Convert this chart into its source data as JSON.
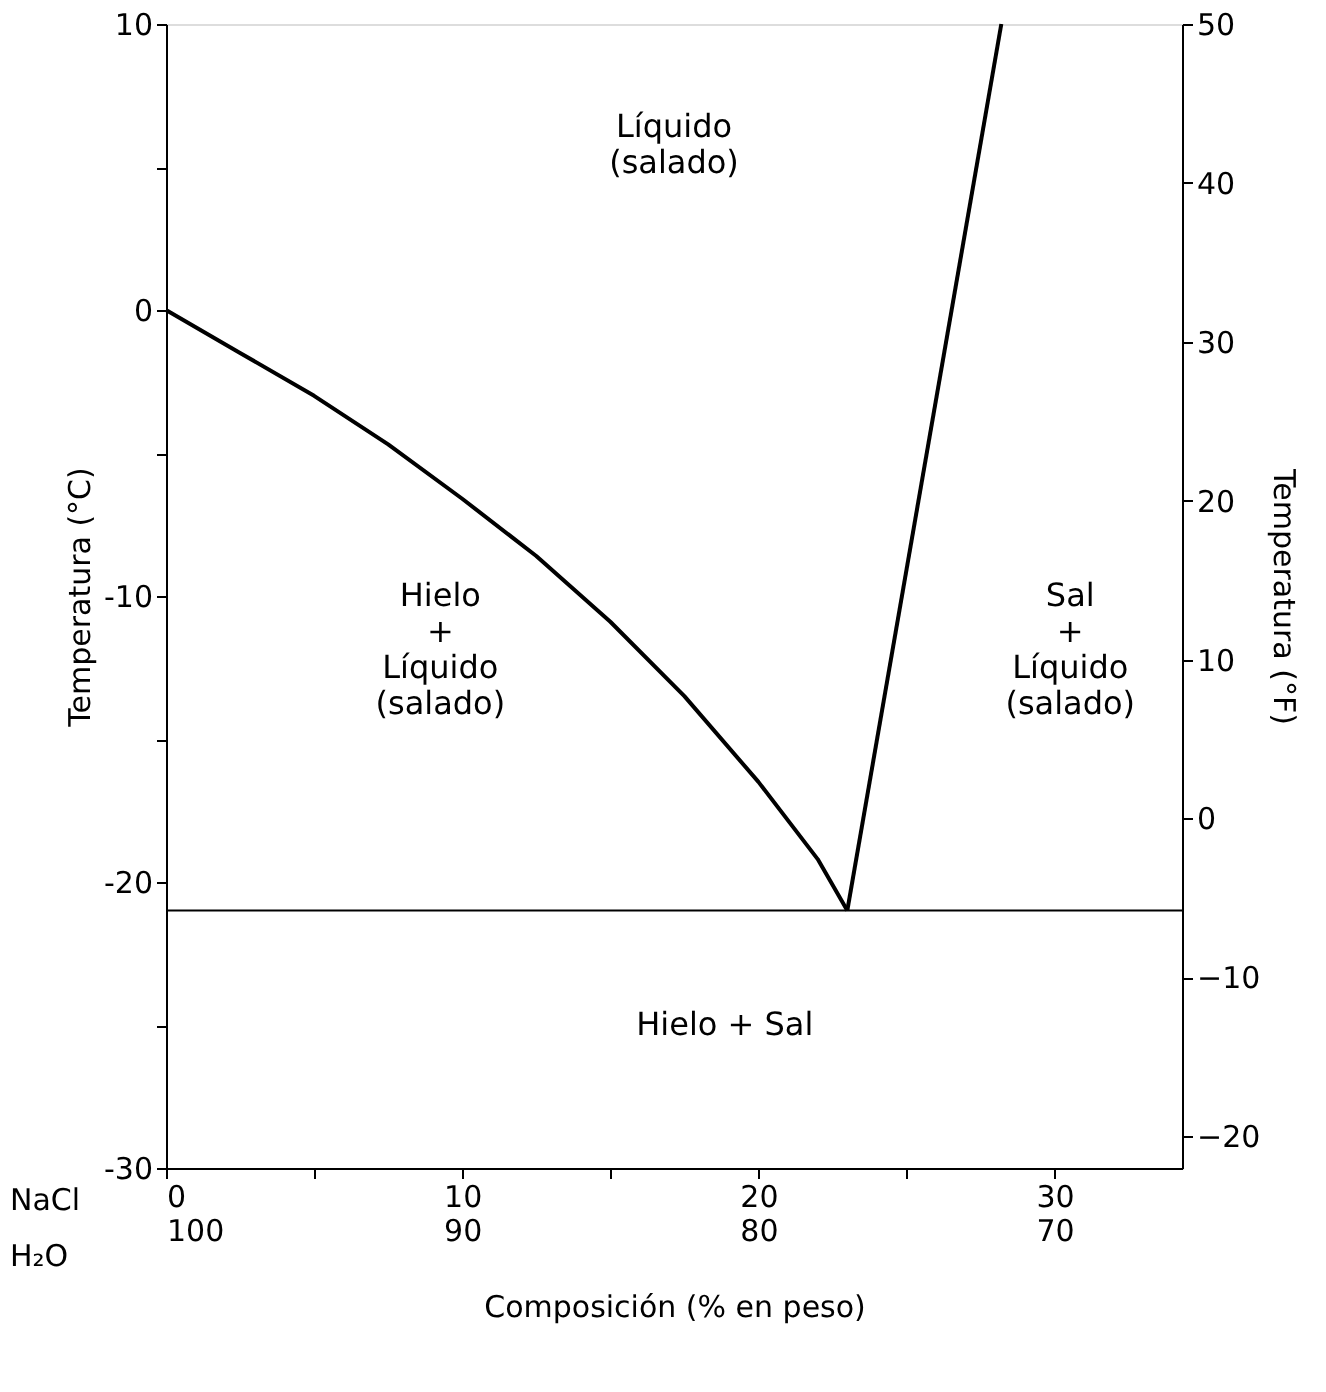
{
  "chart_data": {
    "type": "line",
    "xlabel": "Composición (% en peso)",
    "ylabel": "Temperatura (°C)",
    "y2label": "Temperatura (°F)",
    "xlim": [
      0,
      34.3
    ],
    "xticks": [
      0,
      {
        "value": 5,
        "label": null
      },
      10,
      {
        "value": 15,
        "label": null
      },
      20,
      {
        "value": 25,
        "label": null
      },
      30
    ],
    "x2lim": [
      100,
      65.7
    ],
    "x2ticks": [
      100,
      90,
      80,
      70
    ],
    "ylim": [
      -30,
      10
    ],
    "yticks": [
      -30,
      {
        "value": -25,
        "label": null
      },
      -20,
      {
        "value": -15,
        "label": null
      },
      -10,
      {
        "value": -5,
        "label": null
      },
      0,
      {
        "value": 5,
        "label": null
      },
      10
    ],
    "y2lim": [
      -22,
      50
    ],
    "y2ticks": [
      -20,
      -10,
      0,
      10,
      20,
      30,
      40,
      50
    ],
    "series": [
      {
        "color": "#000000",
        "x": [
          0,
          2.5,
          5,
          7.5,
          10,
          12.5,
          15,
          17.5,
          20,
          22,
          23
        ],
        "values": [
          0,
          -1.5,
          -3,
          -4.7,
          -6.6,
          -8.6,
          -10.9,
          -13.5,
          -16.5,
          -19.2,
          -21
        ]
      },
      {
        "color": "#000000",
        "x": [
          23,
          28.2
        ],
        "values": [
          -21,
          10
        ]
      }
    ],
    "ref_lines": [
      {
        "axis": "y",
        "value": -21,
        "color": "#000000"
      }
    ],
    "annotations": [
      "Líquido\n(salado)",
      "Hielo\n+\nLíquido\n(salado)",
      "Sal\n+\nLíquido\n(salado)",
      "Hielo + Sal",
      "NaCl",
      "H₂O"
    ],
    "grid": false,
    "marker": "none",
    "line_style": "solid"
  }
}
